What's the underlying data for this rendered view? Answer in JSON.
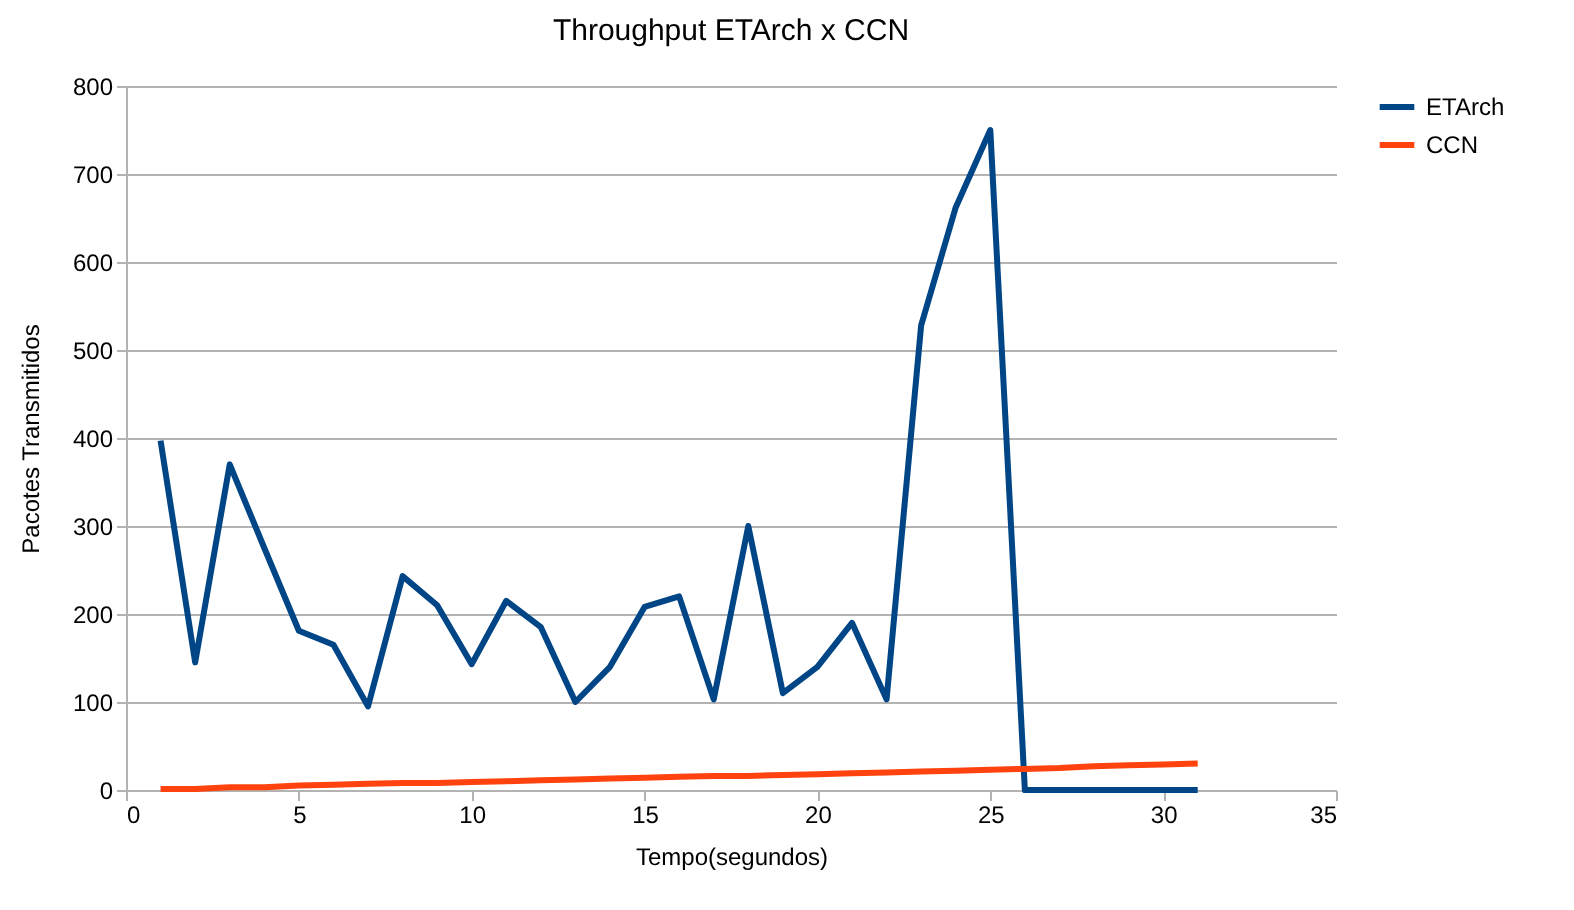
{
  "chart_data": {
    "type": "line",
    "title": "Throughput ETArch x CCN",
    "xlabel": "Tempo(segundos)",
    "ylabel": "Pacotes Transmitidos",
    "x": [
      1,
      2,
      3,
      4,
      5,
      6,
      7,
      8,
      9,
      10,
      11,
      12,
      13,
      14,
      15,
      16,
      17,
      18,
      19,
      20,
      21,
      22,
      23,
      24,
      25,
      26,
      27,
      28,
      29,
      30,
      31
    ],
    "series": [
      {
        "name": "ETArch",
        "color": "#004586",
        "values": [
          397,
          145,
          370,
          275,
          181,
          165,
          95,
          243,
          210,
          143,
          215,
          185,
          100,
          140,
          208,
          220,
          103,
          300,
          110,
          140,
          190,
          103,
          528,
          662,
          750,
          0,
          0,
          0,
          0,
          0,
          0
        ]
      },
      {
        "name": "CCN",
        "color": "#ff420e",
        "values": [
          1,
          1,
          3,
          3,
          5,
          6,
          7,
          8,
          8,
          9,
          10,
          11,
          12,
          13,
          14,
          15,
          16,
          16,
          17,
          18,
          19,
          20,
          21,
          22,
          23,
          24,
          25,
          27,
          28,
          29,
          30
        ]
      }
    ],
    "xlim": [
      0,
      35
    ],
    "xticks": [
      0,
      5,
      10,
      15,
      20,
      25,
      30,
      35
    ],
    "ylim": [
      0,
      800
    ],
    "yticks": [
      0,
      100,
      200,
      300,
      400,
      500,
      600,
      700,
      800
    ],
    "grid": "y",
    "legend": "right",
    "marker": "none",
    "line_style": "solid"
  }
}
